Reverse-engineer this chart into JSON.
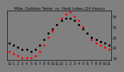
{
  "title": "Milw. Outdoor Temp  vs  Heat Index (24 Hours)",
  "bg_color": "#808080",
  "plot_bg": "#000000",
  "temp_color": "#000000",
  "heat_color": "#ff0000",
  "ylim": [
    14,
    38
  ],
  "yticks": [
    15,
    20,
    25,
    30,
    35
  ],
  "xlabel_fontsize": 3.5,
  "ylabel_fontsize": 3.5,
  "title_fontsize": 4.0,
  "x_hours": [
    0,
    1,
    2,
    3,
    4,
    5,
    6,
    7,
    8,
    9,
    10,
    11,
    12,
    13,
    14,
    15,
    16,
    17,
    18,
    19,
    20,
    21,
    22,
    23
  ],
  "temp_vals": [
    22,
    21,
    20,
    19,
    19,
    18,
    19,
    21,
    24,
    27,
    29,
    31,
    33,
    34,
    34,
    33,
    31,
    29,
    27,
    25,
    24,
    23,
    22,
    21
  ],
  "heat_vals": [
    18,
    17,
    16,
    15,
    15,
    15,
    16,
    18,
    21,
    25,
    28,
    31,
    34,
    36,
    37,
    35,
    33,
    30,
    27,
    24,
    22,
    21,
    20,
    19
  ],
  "x_tick_labels": [
    "12",
    "1",
    "2",
    "3",
    "4",
    "5",
    "6",
    "7",
    "8",
    "9",
    "10",
    "11",
    "12",
    "1",
    "2",
    "3",
    "4",
    "5",
    "6",
    "7",
    "8",
    "9",
    "10",
    "11"
  ],
  "grid_positions": [
    3,
    6,
    9,
    12,
    15,
    18,
    21
  ],
  "marker_size": 1.2,
  "grid_color": "#888888",
  "grid_alpha": 0.8,
  "grid_lw": 0.4
}
